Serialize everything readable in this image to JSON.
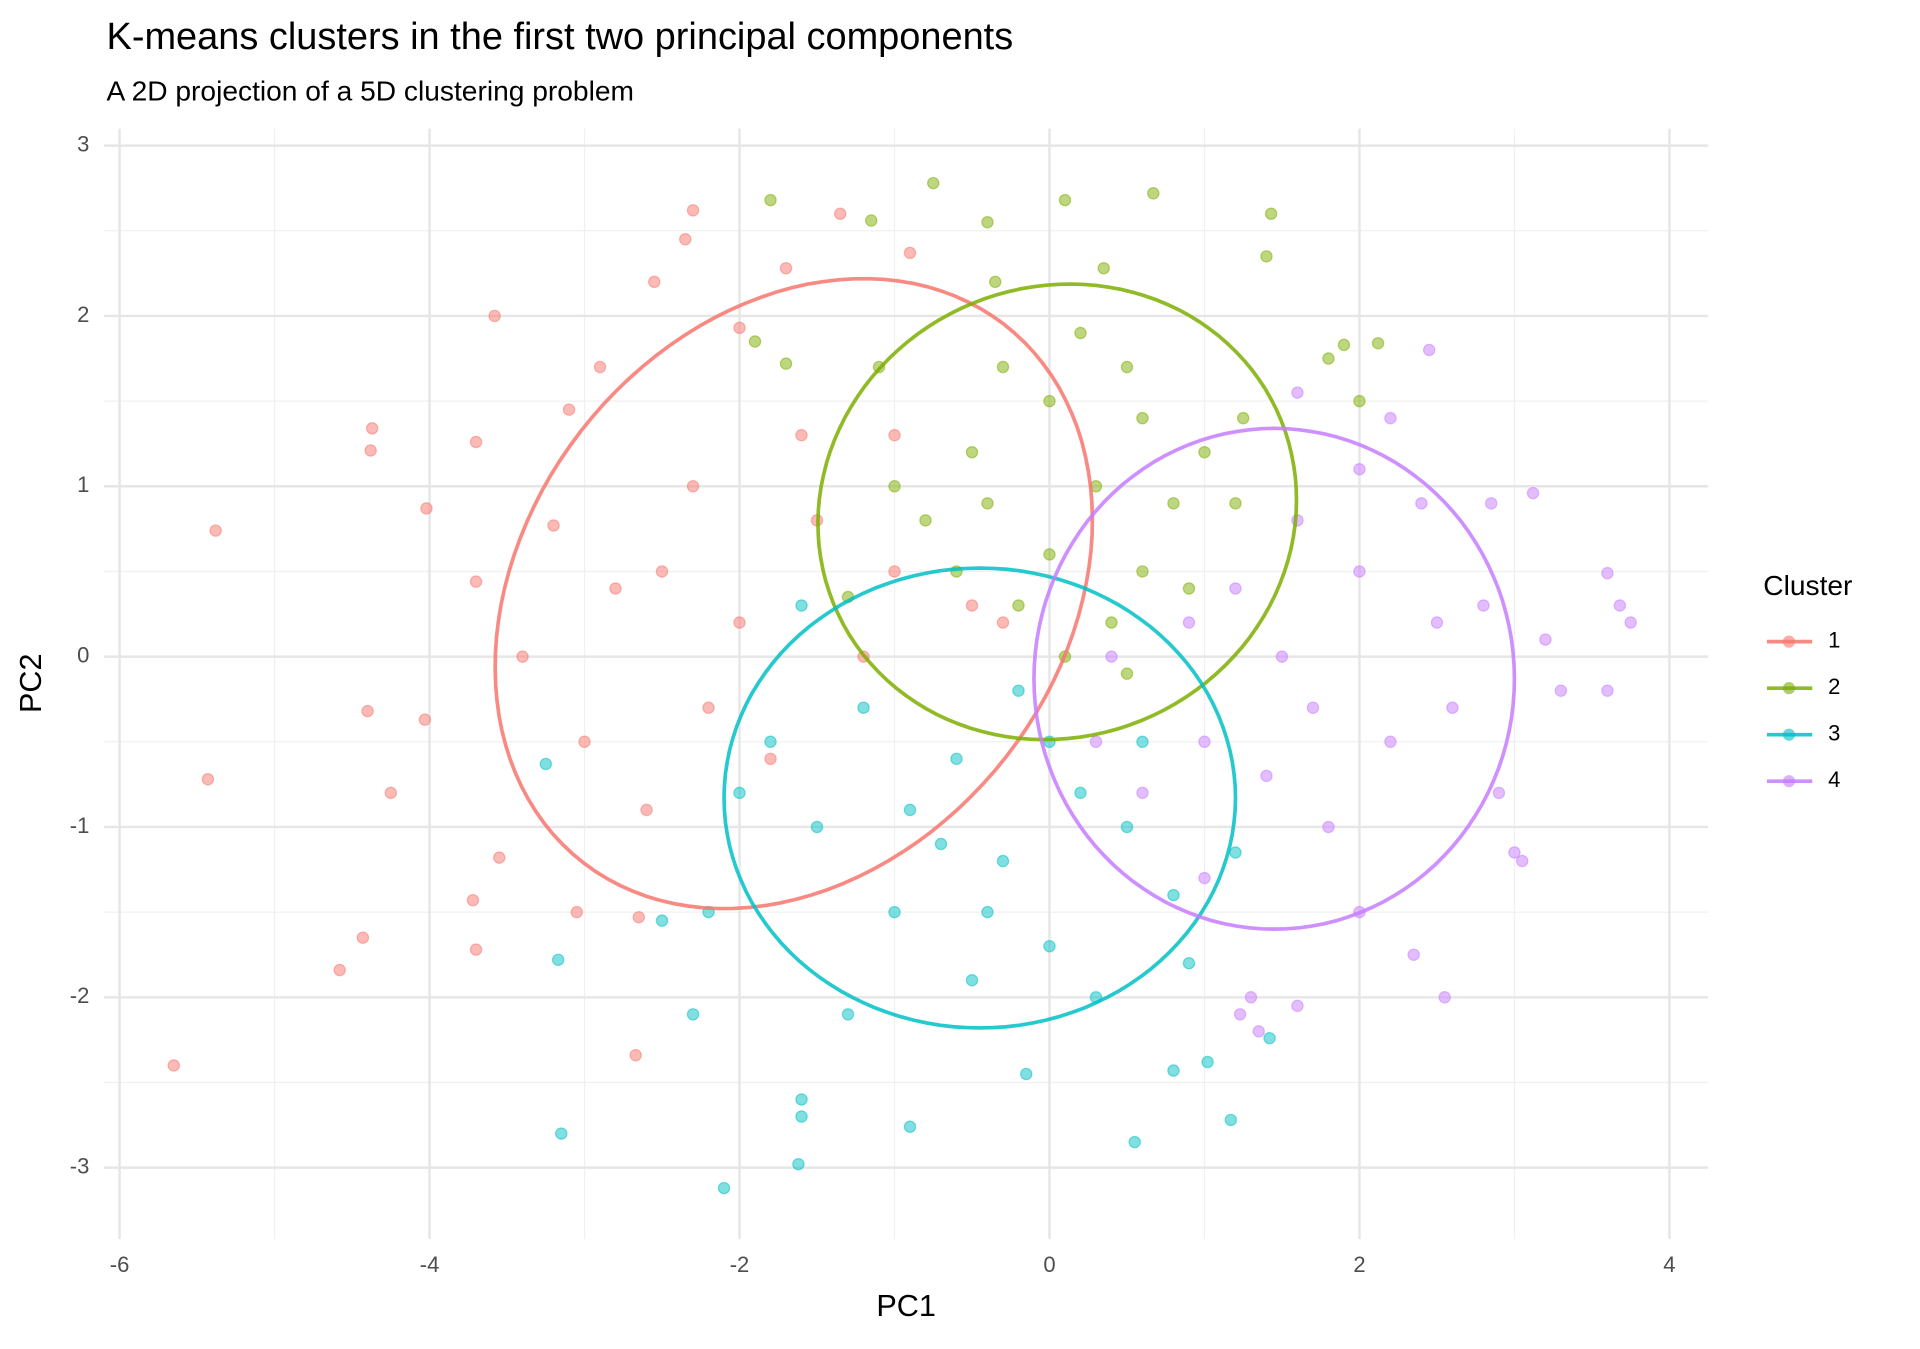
{
  "chart_data": {
    "type": "scatter",
    "title": "K-means clusters in the first two principal components",
    "subtitle": "A 2D projection of a 5D clustering problem",
    "x_label": "PC1",
    "y_label": "PC2",
    "legend_title": "Cluster",
    "legend": "right",
    "grid": true,
    "xlim": [
      -6.1,
      4.25
    ],
    "ylim": [
      -3.42,
      3.1
    ],
    "xticks": [
      -6,
      -4,
      -2,
      0,
      2,
      4
    ],
    "yticks": [
      -3,
      -2,
      -1,
      0,
      1,
      2,
      3
    ],
    "minor_xticks": [
      -5,
      -3,
      -1,
      1,
      3
    ],
    "minor_yticks": [
      -2.5,
      -1.5,
      -0.5,
      0.5,
      1.5,
      2.5
    ],
    "series": [
      {
        "name": "1",
        "color": "#F8766D",
        "ellipse": {
          "center": [
            -1.65,
            0.37
          ],
          "radii": [
            2.1,
            1.65
          ],
          "angle": 40
        },
        "x": [
          -5.38,
          -5.43,
          -5.65,
          -4.58,
          -4.43,
          -4.37,
          -4.38,
          -4.4,
          -4.25,
          -3.58,
          -4.02,
          -4.03,
          -3.7,
          -3.72,
          -3.55,
          -3.7,
          -3.05,
          -2.67,
          -2.65,
          -3.1,
          -2.9,
          -2.55,
          -2.3,
          -2.35,
          -2.0,
          -1.7,
          -1.35,
          -0.9,
          -3.2,
          -2.8,
          -2.5,
          -2.0,
          -1.5,
          -1.0,
          -2.2,
          -1.8,
          -2.6,
          -3.0,
          -1.2,
          -0.5,
          -1.6,
          -2.3,
          -3.4,
          -3.7,
          -1.0,
          -0.3
        ],
        "y": [
          0.74,
          -0.72,
          -2.4,
          -1.84,
          -1.65,
          1.34,
          1.21,
          -0.32,
          -0.8,
          2.0,
          0.87,
          -0.37,
          1.26,
          -1.43,
          -1.18,
          -1.72,
          -1.5,
          -2.34,
          -1.53,
          1.45,
          1.7,
          2.2,
          2.62,
          2.45,
          1.93,
          2.28,
          2.6,
          2.37,
          0.77,
          0.4,
          0.5,
          0.2,
          0.8,
          0.5,
          -0.3,
          -0.6,
          -0.9,
          -0.5,
          0.0,
          0.3,
          1.3,
          1.0,
          0.0,
          0.44,
          1.3,
          0.2
        ]
      },
      {
        "name": "2",
        "color": "#7CAE00",
        "ellipse": {
          "center": [
            0.05,
            0.85
          ],
          "radii": [
            1.55,
            1.33
          ],
          "angle": 10
        },
        "x": [
          -0.75,
          0.1,
          0.67,
          1.43,
          1.4,
          -1.8,
          -1.15,
          -0.4,
          -0.35,
          0.35,
          -1.7,
          -1.9,
          1.9,
          2.12,
          1.8,
          2.0,
          1.25,
          -1.3,
          0.0,
          0.5,
          -0.5,
          0.3,
          -0.8,
          0.8,
          0.0,
          -0.2,
          0.4,
          0.6,
          1.0,
          -1.0,
          0.2,
          -0.3,
          0.9,
          0.5,
          1.2,
          -0.6,
          0.1,
          -1.1,
          0.6,
          -0.4
        ],
        "y": [
          2.78,
          2.68,
          2.72,
          2.6,
          2.35,
          2.68,
          2.56,
          2.55,
          2.2,
          2.28,
          1.72,
          1.85,
          1.83,
          1.84,
          1.75,
          1.5,
          1.4,
          0.35,
          1.5,
          1.7,
          1.2,
          1.0,
          0.8,
          0.9,
          0.6,
          0.3,
          0.2,
          0.5,
          1.2,
          1.0,
          1.9,
          1.7,
          0.4,
          -0.1,
          0.9,
          0.5,
          0.0,
          1.7,
          1.4,
          0.9
        ]
      },
      {
        "name": "3",
        "color": "#00BFC4",
        "ellipse": {
          "center": [
            -0.45,
            -0.83
          ],
          "radii": [
            1.65,
            1.35
          ],
          "angle": 0
        },
        "x": [
          -2.1,
          -1.62,
          -0.9,
          -3.15,
          -3.17,
          -3.25,
          0.55,
          1.17,
          -0.15,
          0.8,
          1.02,
          1.42,
          -1.6,
          -1.6,
          -2.3,
          -2.5,
          -0.5,
          0.0,
          -1.0,
          -0.3,
          0.5,
          0.8,
          -1.5,
          -1.8,
          -1.2,
          -0.6,
          0.2,
          0.6,
          -0.9,
          -0.2,
          -1.6,
          -2.0,
          0.9,
          1.2,
          -0.4,
          0.3,
          -1.3,
          -0.7,
          0.0,
          -2.2
        ],
        "y": [
          -3.12,
          -2.98,
          -2.76,
          -2.8,
          -1.78,
          -0.63,
          -2.85,
          -2.72,
          -2.45,
          -2.43,
          -2.38,
          -2.24,
          -2.7,
          -2.6,
          -2.1,
          -1.55,
          -1.9,
          -1.7,
          -1.5,
          -1.2,
          -1.0,
          -1.4,
          -1.0,
          -0.5,
          -0.3,
          -0.6,
          -0.8,
          -0.5,
          -0.9,
          -0.2,
          0.3,
          -0.8,
          -1.8,
          -1.15,
          -1.5,
          -2.0,
          -2.1,
          -1.1,
          -0.5,
          -1.5
        ]
      },
      {
        "name": "4",
        "color": "#C77CFF",
        "ellipse": {
          "center": [
            1.45,
            -0.13
          ],
          "radii": [
            1.55,
            1.47
          ],
          "angle": 0
        },
        "x": [
          2.45,
          1.6,
          2.2,
          2.85,
          3.12,
          3.6,
          3.75,
          3.68,
          3.6,
          3.0,
          3.05,
          2.9,
          2.55,
          2.35,
          1.35,
          1.6,
          1.3,
          1.23,
          2.0,
          1.5,
          2.5,
          1.0,
          0.6,
          2.2,
          1.8,
          1.2,
          0.4,
          2.8,
          3.2,
          2.0,
          1.0,
          1.6,
          2.4,
          0.9,
          2.6,
          1.4,
          2.0,
          3.3,
          0.3,
          1.7
        ],
        "y": [
          1.8,
          1.55,
          1.4,
          0.9,
          0.96,
          0.49,
          0.2,
          0.3,
          -0.2,
          -1.15,
          -1.2,
          -0.8,
          -2.0,
          -1.75,
          -2.2,
          -2.05,
          -2.0,
          -2.1,
          0.5,
          0.0,
          0.2,
          -0.5,
          -0.8,
          -0.5,
          -1.0,
          0.4,
          0.0,
          0.3,
          0.1,
          -1.5,
          -1.3,
          0.8,
          0.9,
          0.2,
          -0.3,
          -0.7,
          1.1,
          -0.2,
          -0.5,
          -0.3
        ]
      }
    ]
  }
}
